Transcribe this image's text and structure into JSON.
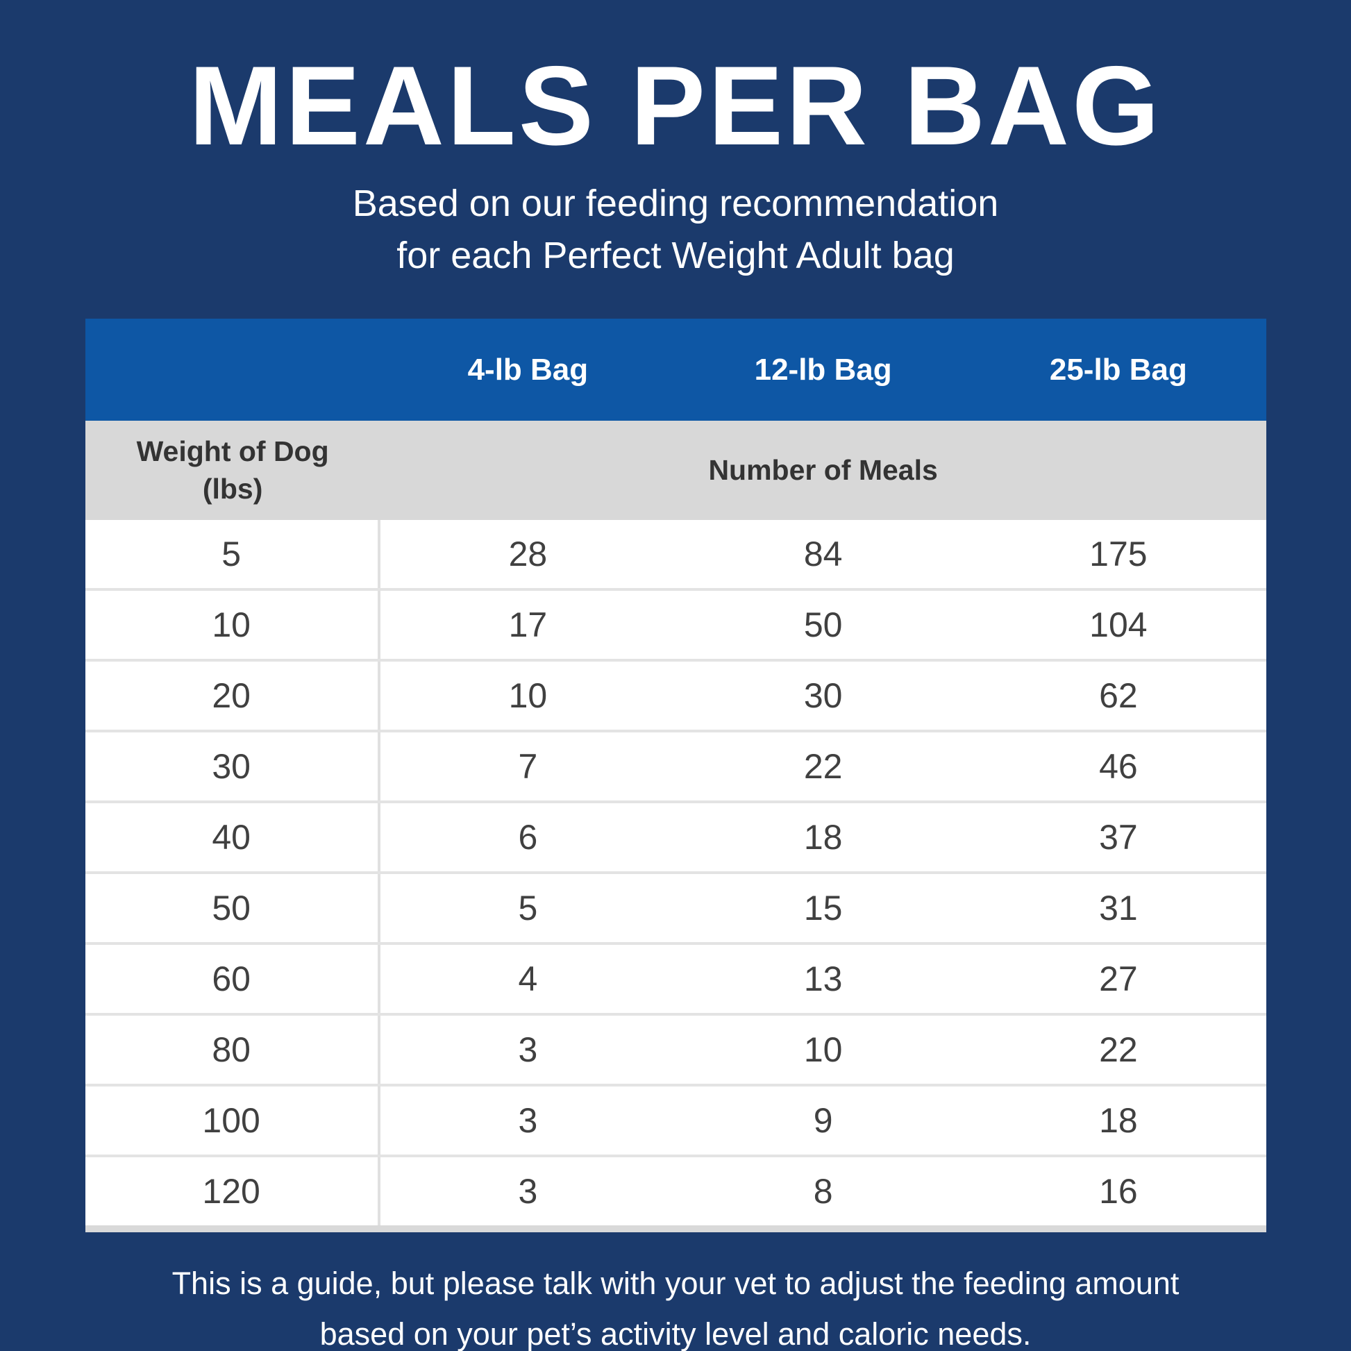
{
  "header": {
    "title": "MEALS PER BAG",
    "subtitle_line1": "Based on our feeding recommendation",
    "subtitle_line2": "for each Perfect Weight Adult bag"
  },
  "table": {
    "bag_headers": [
      "4-lb Bag",
      "12-lb Bag",
      "25-lb Bag"
    ],
    "weight_header_line1": "Weight of Dog",
    "weight_header_line2": "(lbs)",
    "meals_header": "Number of Meals",
    "rows": [
      {
        "weight": "5",
        "bag4": "28",
        "bag12": "84",
        "bag25": "175"
      },
      {
        "weight": "10",
        "bag4": "17",
        "bag12": "50",
        "bag25": "104"
      },
      {
        "weight": "20",
        "bag4": "10",
        "bag12": "30",
        "bag25": "62"
      },
      {
        "weight": "30",
        "bag4": "7",
        "bag12": "22",
        "bag25": "46"
      },
      {
        "weight": "40",
        "bag4": "6",
        "bag12": "18",
        "bag25": "37"
      },
      {
        "weight": "50",
        "bag4": "5",
        "bag12": "15",
        "bag25": "31"
      },
      {
        "weight": "60",
        "bag4": "4",
        "bag12": "13",
        "bag25": "27"
      },
      {
        "weight": "80",
        "bag4": "3",
        "bag12": "10",
        "bag25": "22"
      },
      {
        "weight": "100",
        "bag4": "3",
        "bag12": "9",
        "bag25": "18"
      },
      {
        "weight": "120",
        "bag4": "3",
        "bag12": "8",
        "bag25": "16"
      }
    ]
  },
  "footer": {
    "line1": "This is a guide, but please talk with your vet to adjust the feeding amount",
    "line2": "based on your pet’s activity level and caloric needs."
  },
  "colors": {
    "background": "#1B3A6C",
    "header_blue": "#0E57A5",
    "header_gray": "#D8D8D8",
    "row_divider": "#E3E3E3",
    "column_divider": "#E0E0E0",
    "dark_text": "#333333",
    "number_text": "#404040",
    "white_text": "#FFFFFF"
  },
  "chart_data": {
    "type": "table",
    "title": "MEALS PER BAG",
    "subtitle": "Based on our feeding recommendation for each Perfect Weight Adult bag",
    "columns": [
      "Weight of Dog (lbs)",
      "4-lb Bag",
      "12-lb Bag",
      "25-lb Bag"
    ],
    "units": {
      "columns_2_to_4": "Number of Meals"
    },
    "rows": [
      [
        5,
        28,
        84,
        175
      ],
      [
        10,
        17,
        50,
        104
      ],
      [
        20,
        10,
        30,
        62
      ],
      [
        30,
        7,
        22,
        46
      ],
      [
        40,
        6,
        18,
        37
      ],
      [
        50,
        5,
        15,
        31
      ],
      [
        60,
        4,
        13,
        27
      ],
      [
        80,
        3,
        10,
        22
      ],
      [
        100,
        3,
        9,
        18
      ],
      [
        120,
        3,
        8,
        16
      ]
    ],
    "note": "This is a guide, but please talk with your vet to adjust the feeding amount based on your pet’s activity level and caloric needs."
  }
}
